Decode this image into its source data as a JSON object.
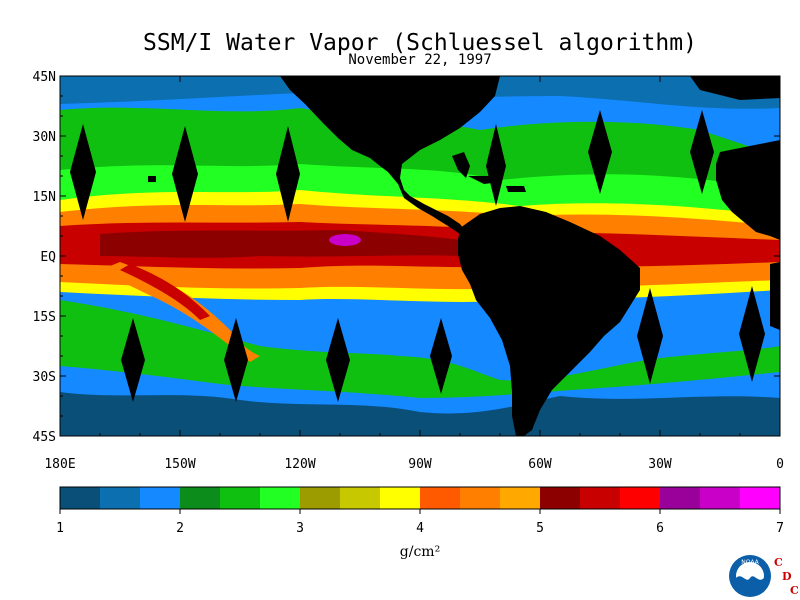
{
  "title": "SSM/I Water Vapor (Schluessel algorithm)",
  "subtitle": "November 22, 1997",
  "lat_labels": [
    "45N",
    "30N",
    "15N",
    "EQ",
    "15S",
    "30S",
    "45S"
  ],
  "lon_labels": [
    "180E",
    "150W",
    "120W",
    "90W",
    "60W",
    "30W",
    "0"
  ],
  "map": {
    "lat_range": [
      -45,
      45
    ],
    "lon_range": [
      -180,
      0
    ]
  },
  "colorbar": {
    "min": 1,
    "max": 7,
    "tick_labels": [
      "1",
      "2",
      "3",
      "4",
      "5",
      "6",
      "7"
    ],
    "units": "g/cm²",
    "colors": [
      "#0a4f78",
      "#0b6fb0",
      "#1589ff",
      "#0c8c1a",
      "#10c010",
      "#22ff22",
      "#9c9c00",
      "#c8c800",
      "#ffff00",
      "#ff5a00",
      "#ff8000",
      "#ffa800",
      "#8c0000",
      "#c80000",
      "#ff0000",
      "#9a009a",
      "#c800c8",
      "#ff00ff"
    ]
  },
  "logo": {
    "agency": "NOAA",
    "letters": [
      "C",
      "D",
      "C"
    ]
  },
  "colors": {
    "land": "#000000",
    "missing": "#000000"
  }
}
